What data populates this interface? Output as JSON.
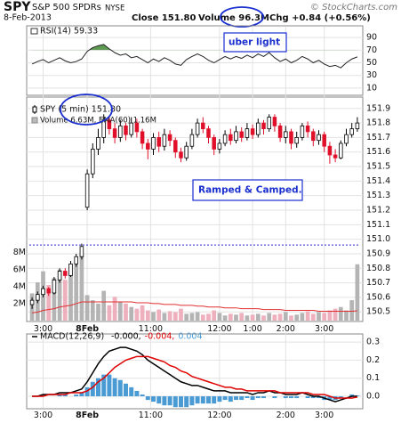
{
  "header": {
    "symbol": "SPY",
    "name": "S&P 500 SPDRs",
    "exchange": "NYSE",
    "copyright": "© StockCharts.com",
    "date": "8-Feb-2013",
    "close": "Close 151.80",
    "volume": "Volume 96.3M",
    "change": "Chg +0.84 (+0.56%)"
  },
  "chart_data": [
    {
      "type": "line",
      "title": "RSI(14) 59.33",
      "annotation": "uber light",
      "xlim": [
        -0.5,
        59.5
      ],
      "ylim": [
        0,
        100
      ],
      "yticks": [
        10,
        30,
        50,
        70,
        90
      ],
      "grid": true,
      "overbought": 70,
      "fill_color": "#5f9a55",
      "series": [
        {
          "color": "#222222",
          "values": [
            48,
            52,
            55,
            50,
            54,
            58,
            53,
            50,
            52,
            56,
            68,
            74,
            77,
            79,
            72,
            66,
            62,
            64,
            58,
            60,
            55,
            50,
            56,
            52,
            58,
            54,
            48,
            46,
            55,
            60,
            64,
            60,
            54,
            50,
            55,
            60,
            56,
            60,
            57,
            62,
            58,
            64,
            60,
            66,
            58,
            52,
            56,
            50,
            54,
            60,
            56,
            50,
            54,
            48,
            44,
            46,
            42,
            50,
            56,
            59.33
          ]
        }
      ]
    },
    {
      "type": "candlestick",
      "title": "SPY (5 min) 151.80",
      "annotation": "Ramped & Camped.",
      "xlim": [
        -0.5,
        59.5
      ],
      "ylim": [
        150.44,
        151.96
      ],
      "yticks": [
        150.5,
        150.6,
        150.7,
        150.8,
        150.9,
        {
          "value": 151,
          "label": "151.0"
        },
        151.1,
        151.2,
        151.3,
        151.4,
        151.5,
        151.6,
        151.7,
        151.8,
        151.9
      ],
      "xticks": [
        {
          "value": 2,
          "label": "3:00"
        },
        {
          "value": 10,
          "label": "8Feb"
        },
        {
          "value": 21.5,
          "label": "11:00"
        },
        {
          "value": 34,
          "label": "12:00"
        },
        {
          "value": 40,
          "label": "1:00"
        },
        {
          "value": 46,
          "label": "2:00"
        },
        {
          "value": 53,
          "label": "3:00"
        }
      ],
      "grid": true,
      "up_color": "#ffffff",
      "down_color": "#e0102a",
      "prev_close": 150.96,
      "open": [
        150.55,
        150.58,
        150.62,
        150.66,
        150.63,
        150.72,
        150.78,
        150.75,
        150.83,
        150.88,
        151.22,
        151.45,
        151.62,
        151.7,
        151.82,
        151.76,
        151.7,
        151.78,
        151.72,
        151.8,
        151.74,
        151.66,
        151.62,
        151.7,
        151.64,
        151.72,
        151.68,
        151.6,
        151.56,
        151.64,
        151.72,
        151.8,
        151.76,
        151.7,
        151.62,
        151.66,
        151.72,
        151.68,
        151.74,
        151.7,
        151.76,
        151.72,
        151.8,
        151.76,
        151.84,
        151.78,
        151.7,
        151.74,
        151.66,
        151.7,
        151.78,
        151.74,
        151.68,
        151.72,
        151.64,
        151.58,
        151.56,
        151.66,
        151.72,
        151.76
      ],
      "high": [
        150.6,
        150.64,
        150.68,
        150.67,
        150.74,
        150.8,
        150.8,
        150.85,
        150.9,
        150.97,
        151.48,
        151.66,
        151.76,
        151.86,
        151.85,
        151.8,
        151.82,
        151.8,
        151.84,
        151.83,
        151.76,
        151.69,
        151.73,
        151.74,
        151.76,
        151.75,
        151.7,
        151.63,
        151.67,
        151.76,
        151.83,
        151.84,
        151.78,
        151.72,
        151.69,
        151.75,
        151.76,
        151.78,
        151.77,
        151.8,
        151.79,
        151.83,
        151.82,
        151.86,
        151.86,
        151.8,
        151.78,
        151.76,
        151.74,
        151.8,
        151.81,
        151.76,
        151.75,
        151.74,
        151.67,
        151.62,
        151.68,
        151.76,
        151.8,
        151.84
      ],
      "low": [
        150.52,
        150.56,
        150.6,
        150.61,
        150.62,
        150.7,
        150.73,
        150.74,
        150.81,
        150.86,
        151.2,
        151.42,
        151.58,
        151.66,
        151.72,
        151.66,
        151.67,
        151.68,
        151.7,
        151.7,
        151.62,
        151.55,
        151.58,
        151.6,
        151.61,
        151.64,
        151.56,
        151.53,
        151.54,
        151.62,
        151.7,
        151.73,
        151.66,
        151.58,
        151.59,
        151.64,
        151.65,
        151.66,
        151.67,
        151.68,
        151.69,
        151.7,
        151.72,
        151.74,
        151.74,
        151.67,
        151.66,
        151.62,
        151.63,
        151.68,
        151.7,
        151.64,
        151.65,
        151.6,
        151.52,
        151.53,
        151.55,
        151.64,
        151.7,
        151.74
      ],
      "close": [
        150.58,
        150.62,
        150.66,
        150.63,
        150.72,
        150.78,
        150.75,
        150.83,
        150.88,
        150.95,
        151.45,
        151.62,
        151.7,
        151.82,
        151.76,
        151.7,
        151.78,
        151.72,
        151.8,
        151.74,
        151.66,
        151.62,
        151.7,
        151.64,
        151.72,
        151.68,
        151.6,
        151.56,
        151.64,
        151.72,
        151.8,
        151.76,
        151.7,
        151.62,
        151.66,
        151.72,
        151.68,
        151.74,
        151.7,
        151.76,
        151.72,
        151.8,
        151.76,
        151.84,
        151.78,
        151.7,
        151.74,
        151.66,
        151.7,
        151.78,
        151.74,
        151.68,
        151.72,
        151.64,
        151.58,
        151.56,
        151.66,
        151.72,
        151.76,
        151.8
      ],
      "y2lim": [
        0,
        26
      ],
      "y2ticks": [
        {
          "value": 2,
          "label": "2M"
        },
        {
          "value": 4,
          "label": "4M"
        },
        {
          "value": 6,
          "label": "6M"
        },
        {
          "value": 8,
          "label": "8M"
        }
      ],
      "series": [
        {
          "name": "Volume 6.63M, EMA(60) 1.16M",
          "axis": "y2",
          "up_color": "#b4b4b4",
          "down_color": "#eeb0bc",
          "values": [
            3.2,
            4.5,
            5.8,
            4.2,
            5.0,
            6.0,
            4.8,
            5.5,
            6.6,
            8.0,
            3.0,
            2.4,
            2.0,
            3.5,
            1.8,
            2.8,
            2.2,
            2.0,
            1.6,
            1.4,
            1.8,
            1.2,
            1.0,
            1.3,
            0.9,
            1.1,
            1.0,
            1.4,
            0.8,
            0.9,
            1.0,
            0.7,
            0.8,
            1.2,
            0.9,
            0.6,
            0.8,
            0.7,
            0.9,
            0.6,
            0.7,
            0.8,
            0.6,
            0.9,
            0.7,
            0.8,
            1.0,
            0.6,
            0.7,
            0.9,
            1.1,
            0.8,
            1.0,
            0.9,
            1.2,
            1.4,
            1.6,
            1.2,
            2.4,
            6.63
          ]
        },
        {
          "axis": "y2",
          "color": "#e03030",
          "values": [
            0.9,
            1.0,
            1.2,
            1.3,
            1.4,
            1.6,
            1.7,
            1.8,
            2.0,
            2.2,
            2.2,
            2.2,
            2.2,
            2.2,
            2.2,
            2.2,
            2.2,
            2.2,
            2.2,
            2.1,
            2.1,
            2.1,
            2.0,
            2.0,
            1.9,
            1.9,
            1.9,
            1.8,
            1.8,
            1.8,
            1.7,
            1.7,
            1.6,
            1.6,
            1.6,
            1.5,
            1.5,
            1.5,
            1.4,
            1.4,
            1.4,
            1.4,
            1.3,
            1.3,
            1.3,
            1.3,
            1.2,
            1.2,
            1.2,
            1.2,
            1.2,
            1.2,
            1.1,
            1.1,
            1.1,
            1.1,
            1.1,
            1.1,
            1.1,
            1.16
          ]
        }
      ]
    },
    {
      "type": "macd",
      "title": "MACD(12,26,9)",
      "xlim": [
        -0.5,
        59.5
      ],
      "ylim": [
        -0.06,
        0.33
      ],
      "yticks": [
        {
          "value": 0,
          "label": "0.0"
        },
        0.1,
        0.2,
        0.3
      ],
      "xticks": [
        {
          "value": 2,
          "label": "3:00"
        },
        {
          "value": 10,
          "label": "8Feb"
        },
        {
          "value": 21.5,
          "label": "11:00"
        },
        {
          "value": 34,
          "label": "12:00"
        },
        {
          "value": 46,
          "label": "2:00"
        },
        {
          "value": 53,
          "label": "3:00"
        }
      ],
      "grid": true,
      "series": [
        {
          "name": "-0.000,",
          "style": "line",
          "color": "#000000",
          "values": [
            0,
            0,
            0.01,
            0.01,
            0.01,
            0.02,
            0.02,
            0.02,
            0.03,
            0.04,
            0.08,
            0.13,
            0.18,
            0.22,
            0.25,
            0.26,
            0.27,
            0.27,
            0.26,
            0.25,
            0.23,
            0.2,
            0.18,
            0.16,
            0.14,
            0.12,
            0.1,
            0.08,
            0.07,
            0.06,
            0.06,
            0.05,
            0.04,
            0.03,
            0.03,
            0.03,
            0.02,
            0.02,
            0.02,
            0.02,
            0.01,
            0.02,
            0.02,
            0.03,
            0.02,
            0.02,
            0.01,
            0.01,
            0.01,
            0.02,
            0.01,
            0,
            0,
            -0.01,
            -0.02,
            -0.03,
            -0.02,
            -0.01,
            0,
            0
          ]
        },
        {
          "name": "-0.004,",
          "style": "line",
          "color": "#e00000",
          "values": [
            0,
            0,
            0,
            0.01,
            0.01,
            0.01,
            0.01,
            0.02,
            0.02,
            0.02,
            0.03,
            0.05,
            0.08,
            0.1,
            0.13,
            0.16,
            0.18,
            0.2,
            0.21,
            0.22,
            0.22,
            0.22,
            0.21,
            0.2,
            0.19,
            0.17,
            0.16,
            0.14,
            0.13,
            0.11,
            0.1,
            0.09,
            0.08,
            0.07,
            0.06,
            0.05,
            0.05,
            0.04,
            0.04,
            0.03,
            0.03,
            0.03,
            0.03,
            0.03,
            0.03,
            0.02,
            0.02,
            0.02,
            0.02,
            0.02,
            0.02,
            0.01,
            0.01,
            0.01,
            0,
            -0.01,
            -0.01,
            -0.01,
            -0.01,
            -0.004
          ]
        },
        {
          "name": "0.004",
          "style": "bar",
          "color": "#4a9ad4",
          "values": [
            0,
            0,
            0.01,
            0,
            0,
            0.01,
            0.01,
            0,
            0.01,
            0.02,
            0.05,
            0.08,
            0.1,
            0.12,
            0.12,
            0.1,
            0.09,
            0.07,
            0.05,
            0.03,
            0.01,
            -0.02,
            -0.03,
            -0.04,
            -0.05,
            -0.05,
            -0.06,
            -0.06,
            -0.06,
            -0.05,
            -0.04,
            -0.04,
            -0.04,
            -0.04,
            -0.03,
            -0.02,
            -0.03,
            -0.02,
            -0.02,
            -0.01,
            -0.02,
            -0.01,
            -0.01,
            0,
            -0.01,
            0,
            -0.01,
            -0.01,
            -0.01,
            0,
            -0.01,
            -0.01,
            -0.01,
            -0.02,
            -0.02,
            -0.02,
            -0.01,
            0,
            0.01,
            0.004
          ]
        }
      ]
    }
  ]
}
